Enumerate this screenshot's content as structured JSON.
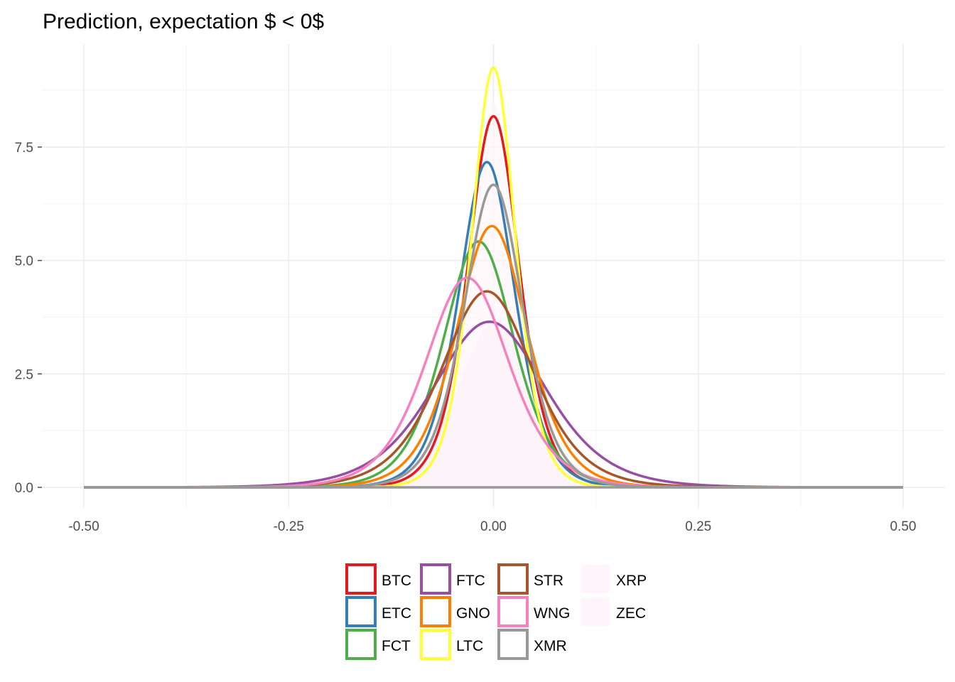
{
  "chart_data": {
    "type": "line",
    "title": "Prediction, expectation $ < 0$",
    "xlabel": "",
    "ylabel": "",
    "xlim": [
      -0.52,
      0.52
    ],
    "ylim": [
      0,
      9.3
    ],
    "x_ticks": [
      -0.5,
      -0.25,
      0,
      0.25,
      0.5
    ],
    "x_tick_labels": [
      "-0.50",
      "-0.25",
      "0.00",
      "0.25",
      "0.50"
    ],
    "y_ticks": [
      0,
      2.5,
      5,
      7.5
    ],
    "y_tick_labels": [
      "0.0",
      "2.5",
      "5.0",
      "7.5"
    ],
    "grid": true,
    "legend_position": "bottom",
    "series": [
      {
        "name": "BTC",
        "color": "#E41A1C",
        "center": 0.0,
        "peak": 8.18,
        "scale": 0.042
      },
      {
        "name": "ETC",
        "color": "#377EB8",
        "center": -0.008,
        "peak": 7.17,
        "scale": 0.046
      },
      {
        "name": "FCT",
        "color": "#4DAF4A",
        "center": -0.018,
        "peak": 5.42,
        "scale": 0.058
      },
      {
        "name": "FTC",
        "color": "#984EA3",
        "center": -0.005,
        "peak": 3.65,
        "scale": 0.092
      },
      {
        "name": "GNO",
        "color": "#FF7F00",
        "center": -0.002,
        "peak": 5.76,
        "scale": 0.058
      },
      {
        "name": "LTC",
        "color": "#FFFF33",
        "center": 0.0,
        "peak": 9.25,
        "scale": 0.036
      },
      {
        "name": "STR",
        "color": "#A65628",
        "center": -0.008,
        "peak": 4.32,
        "scale": 0.075
      },
      {
        "name": "WNG",
        "color": "#F781BF",
        "center": -0.032,
        "peak": 4.62,
        "scale": 0.068
      },
      {
        "name": "XMR",
        "color": "#999999",
        "center": 0.0,
        "peak": 6.67,
        "scale": 0.048
      },
      {
        "name": "XRP",
        "color": "#FFF5FA",
        "center": 0.0,
        "peak": 8.5,
        "scale": 0.036,
        "filled": true
      },
      {
        "name": "ZEC",
        "color": "#FFF5FA",
        "center": 0.0,
        "peak": 3.7,
        "scale": 0.058,
        "filled": true
      }
    ]
  }
}
